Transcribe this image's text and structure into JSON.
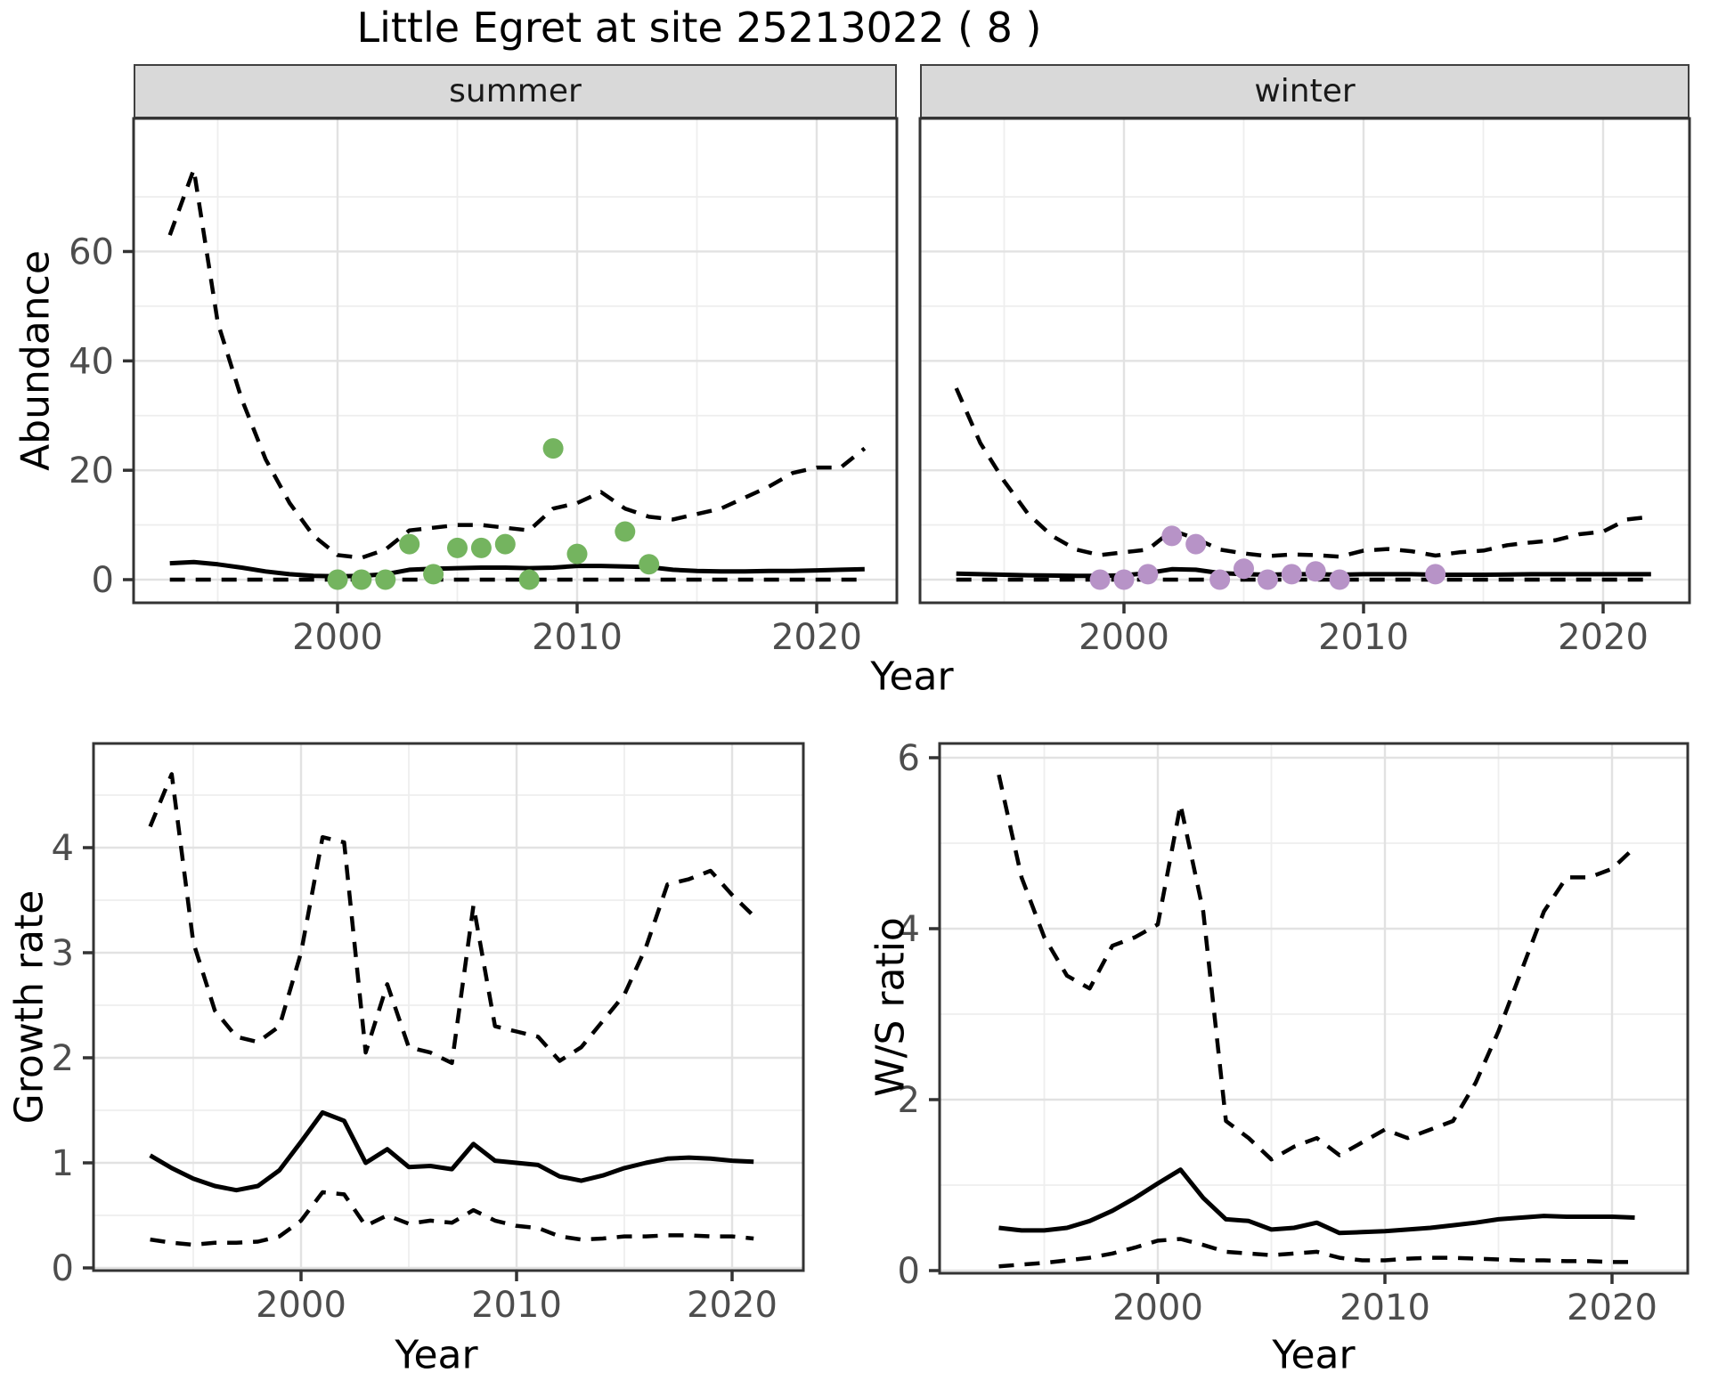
{
  "title": "Little Egret at site 25213022 ( 8 )",
  "colors": {
    "summer_points": "#74b45f",
    "winter_points": "#b793c7",
    "line": "#000000",
    "strip_background": "#d9d9d9",
    "major_grid": "#e2e2e2",
    "minor_grid": "#eeeeee",
    "tick_text": "#4d4d4d",
    "panel_border": "#333333"
  },
  "chart_data": [
    {
      "id": "abundance_summer",
      "type": "line",
      "facet_label": "summer",
      "xlabel": "Year",
      "ylabel": "Abundance",
      "x_ticks": [
        2000,
        2010,
        2020
      ],
      "x_minor_gridlines": [
        1995,
        2005,
        2015
      ],
      "y_ticks": [
        0,
        20,
        40,
        60
      ],
      "y_minor_gridlines": [
        10,
        30,
        50,
        70
      ],
      "xlim": [
        1991.5,
        2023.5
      ],
      "ylim": [
        -4.2,
        84
      ],
      "grid": true,
      "legend": "none",
      "x": [
        1993,
        1994,
        1995,
        1996,
        1997,
        1998,
        1999,
        2000,
        2001,
        2002,
        2003,
        2004,
        2005,
        2006,
        2007,
        2008,
        2009,
        2010,
        2011,
        2012,
        2013,
        2014,
        2015,
        2016,
        2017,
        2018,
        2019,
        2020,
        2021,
        2022
      ],
      "series": [
        {
          "name": "upper_ci",
          "style": "dashed",
          "values": [
            63,
            75,
            47,
            33,
            22,
            14,
            8,
            4.5,
            4,
            5.5,
            9,
            9.5,
            10,
            10,
            9.5,
            9,
            13,
            14,
            16,
            13,
            11.5,
            11,
            12,
            13,
            15,
            17,
            19.5,
            20.5,
            20.5,
            24
          ]
        },
        {
          "name": "fitted",
          "style": "solid",
          "values": [
            3,
            3.2,
            2.8,
            2.2,
            1.5,
            1,
            0.7,
            0.6,
            0.7,
            1,
            1.8,
            2,
            2.1,
            2.2,
            2.2,
            2.1,
            2.2,
            2.5,
            2.5,
            2.4,
            2.3,
            1.8,
            1.6,
            1.5,
            1.5,
            1.6,
            1.6,
            1.7,
            1.8,
            1.9
          ]
        },
        {
          "name": "lower_ci",
          "style": "dashed",
          "values": [
            0,
            0,
            0,
            0,
            0,
            0,
            0,
            0,
            0,
            0,
            0,
            0,
            0,
            0,
            0,
            0,
            0,
            0,
            0,
            0,
            0,
            0,
            0,
            0,
            0,
            0,
            0,
            0,
            0,
            0
          ]
        }
      ],
      "points": {
        "name": "summer_observations",
        "color": "#74b45f",
        "x": [
          2000,
          2001,
          2002,
          2003,
          2004,
          2005,
          2006,
          2007,
          2008,
          2009,
          2010,
          2012,
          2013
        ],
        "y": [
          0,
          0,
          0,
          6.5,
          1,
          5.8,
          5.8,
          6.5,
          0,
          24,
          4.7,
          8.8,
          2.8
        ]
      }
    },
    {
      "id": "abundance_winter",
      "type": "line",
      "facet_label": "winter",
      "xlabel": "Year",
      "ylabel": "Abundance",
      "x_ticks": [
        2000,
        2010,
        2020
      ],
      "x_minor_gridlines": [
        1995,
        2005,
        2015
      ],
      "y_ticks": [
        0,
        20,
        40,
        60
      ],
      "y_minor_gridlines": [
        10,
        30,
        50,
        70
      ],
      "xlim": [
        1991.5,
        2023.5
      ],
      "ylim": [
        -4.2,
        84
      ],
      "grid": true,
      "legend": "none",
      "x": [
        1993,
        1994,
        1995,
        1996,
        1997,
        1998,
        1999,
        2000,
        2001,
        2002,
        2003,
        2004,
        2005,
        2006,
        2007,
        2008,
        2009,
        2010,
        2011,
        2012,
        2013,
        2014,
        2015,
        2016,
        2017,
        2018,
        2019,
        2020,
        2021,
        2022
      ],
      "series": [
        {
          "name": "upper_ci",
          "style": "dashed",
          "values": [
            35,
            25,
            18,
            12,
            8,
            5.5,
            4.5,
            5,
            5.5,
            9,
            7.5,
            5.5,
            4.8,
            4.3,
            4.6,
            4.5,
            4.2,
            5.3,
            5.6,
            5.2,
            4.4,
            5,
            5.3,
            6.3,
            6.8,
            7.2,
            8.3,
            8.8,
            11,
            11.5
          ]
        },
        {
          "name": "fitted",
          "style": "solid",
          "values": [
            1.1,
            1,
            0.9,
            0.8,
            0.75,
            0.7,
            0.7,
            0.8,
            1.2,
            1.9,
            1.8,
            1.2,
            1,
            0.9,
            1,
            1,
            0.9,
            1,
            1,
            1,
            0.9,
            0.9,
            0.9,
            0.95,
            1,
            1,
            1,
            1,
            1,
            1
          ]
        },
        {
          "name": "lower_ci",
          "style": "dashed",
          "values": [
            0,
            0,
            0,
            0,
            0,
            0,
            0,
            0,
            0,
            0,
            0,
            0,
            0,
            0,
            0,
            0,
            0,
            0,
            0,
            0,
            0,
            0,
            0,
            0,
            0,
            0,
            0,
            0,
            0,
            0
          ]
        }
      ],
      "points": {
        "name": "winter_observations",
        "color": "#b793c7",
        "x": [
          1999,
          2000,
          2001,
          2002,
          2003,
          2004,
          2005,
          2006,
          2007,
          2008,
          2009,
          2013
        ],
        "y": [
          0,
          0,
          1,
          8,
          6.5,
          0,
          2,
          0,
          1,
          1.5,
          0,
          1
        ]
      }
    },
    {
      "id": "growth_rate",
      "type": "line",
      "facet_label": "",
      "xlabel": "Year",
      "ylabel": "Growth rate",
      "x_ticks": [
        2000,
        2010,
        2020
      ],
      "x_minor_gridlines": [
        1995,
        2005,
        2015
      ],
      "y_ticks": [
        0,
        1,
        2,
        3,
        4
      ],
      "y_minor_gridlines": [
        0.5,
        1.5,
        2.5,
        3.5,
        4.5
      ],
      "xlim": [
        1990.6,
        2023.3
      ],
      "ylim": [
        -0.03,
        4.99
      ],
      "grid": true,
      "legend": "none",
      "x": [
        1993,
        1994,
        1995,
        1996,
        1997,
        1998,
        1999,
        2000,
        2001,
        2002,
        2003,
        2004,
        2005,
        2006,
        2007,
        2008,
        2009,
        2010,
        2011,
        2012,
        2013,
        2014,
        2015,
        2016,
        2017,
        2018,
        2019,
        2020,
        2021
      ],
      "series": [
        {
          "name": "upper_ci",
          "style": "dashed",
          "values": [
            4.2,
            4.7,
            3.1,
            2.45,
            2.2,
            2.15,
            2.3,
            3.0,
            4.1,
            4.05,
            2.05,
            2.7,
            2.1,
            2.05,
            1.95,
            3.45,
            2.3,
            2.25,
            2.2,
            1.97,
            2.1,
            2.35,
            2.6,
            3.05,
            3.65,
            3.7,
            3.78,
            3.55,
            3.35
          ]
        },
        {
          "name": "fitted",
          "style": "solid",
          "values": [
            1.07,
            0.95,
            0.85,
            0.78,
            0.74,
            0.78,
            0.93,
            1.2,
            1.48,
            1.4,
            1.0,
            1.13,
            0.96,
            0.97,
            0.94,
            1.18,
            1.02,
            1.0,
            0.98,
            0.87,
            0.83,
            0.88,
            0.95,
            1.0,
            1.04,
            1.05,
            1.04,
            1.02,
            1.01
          ]
        },
        {
          "name": "lower_ci",
          "style": "dashed",
          "values": [
            0.27,
            0.24,
            0.22,
            0.24,
            0.24,
            0.25,
            0.3,
            0.45,
            0.72,
            0.7,
            0.4,
            0.5,
            0.42,
            0.45,
            0.43,
            0.55,
            0.45,
            0.4,
            0.38,
            0.3,
            0.27,
            0.28,
            0.3,
            0.3,
            0.31,
            0.31,
            0.3,
            0.3,
            0.28
          ]
        }
      ]
    },
    {
      "id": "ws_ratio",
      "type": "line",
      "facet_label": "",
      "xlabel": "Year",
      "ylabel": "W/S ratio",
      "x_ticks": [
        2000,
        2010,
        2020
      ],
      "x_minor_gridlines": [
        1995,
        2005,
        2015
      ],
      "y_ticks": [
        0,
        2,
        4,
        6
      ],
      "y_minor_gridlines": [
        1,
        3,
        5
      ],
      "xlim": [
        1990.5,
        2023.4
      ],
      "ylim": [
        -0.03,
        6.17
      ],
      "grid": true,
      "legend": "none",
      "x": [
        1993,
        1994,
        1995,
        1996,
        1997,
        1998,
        1999,
        2000,
        2001,
        2002,
        2003,
        2004,
        2005,
        2006,
        2007,
        2008,
        2009,
        2010,
        2011,
        2012,
        2013,
        2014,
        2015,
        2016,
        2017,
        2018,
        2019,
        2020,
        2021
      ],
      "series": [
        {
          "name": "upper_ci",
          "style": "dashed",
          "values": [
            5.8,
            4.6,
            3.9,
            3.45,
            3.3,
            3.8,
            3.9,
            4.05,
            5.45,
            4.2,
            1.75,
            1.55,
            1.3,
            1.45,
            1.55,
            1.35,
            1.5,
            1.65,
            1.55,
            1.65,
            1.75,
            2.2,
            2.8,
            3.5,
            4.2,
            4.6,
            4.6,
            4.7,
            4.95
          ]
        },
        {
          "name": "fitted",
          "style": "solid",
          "values": [
            0.5,
            0.47,
            0.47,
            0.5,
            0.58,
            0.7,
            0.85,
            1.02,
            1.18,
            0.85,
            0.6,
            0.58,
            0.48,
            0.5,
            0.56,
            0.44,
            0.45,
            0.46,
            0.48,
            0.5,
            0.53,
            0.56,
            0.6,
            0.62,
            0.64,
            0.63,
            0.63,
            0.63,
            0.62
          ]
        },
        {
          "name": "lower_ci",
          "style": "dashed",
          "values": [
            0.05,
            0.07,
            0.09,
            0.12,
            0.15,
            0.2,
            0.27,
            0.35,
            0.37,
            0.3,
            0.22,
            0.2,
            0.18,
            0.2,
            0.22,
            0.15,
            0.12,
            0.12,
            0.14,
            0.15,
            0.15,
            0.14,
            0.13,
            0.12,
            0.12,
            0.11,
            0.11,
            0.1,
            0.1
          ]
        }
      ]
    }
  ]
}
